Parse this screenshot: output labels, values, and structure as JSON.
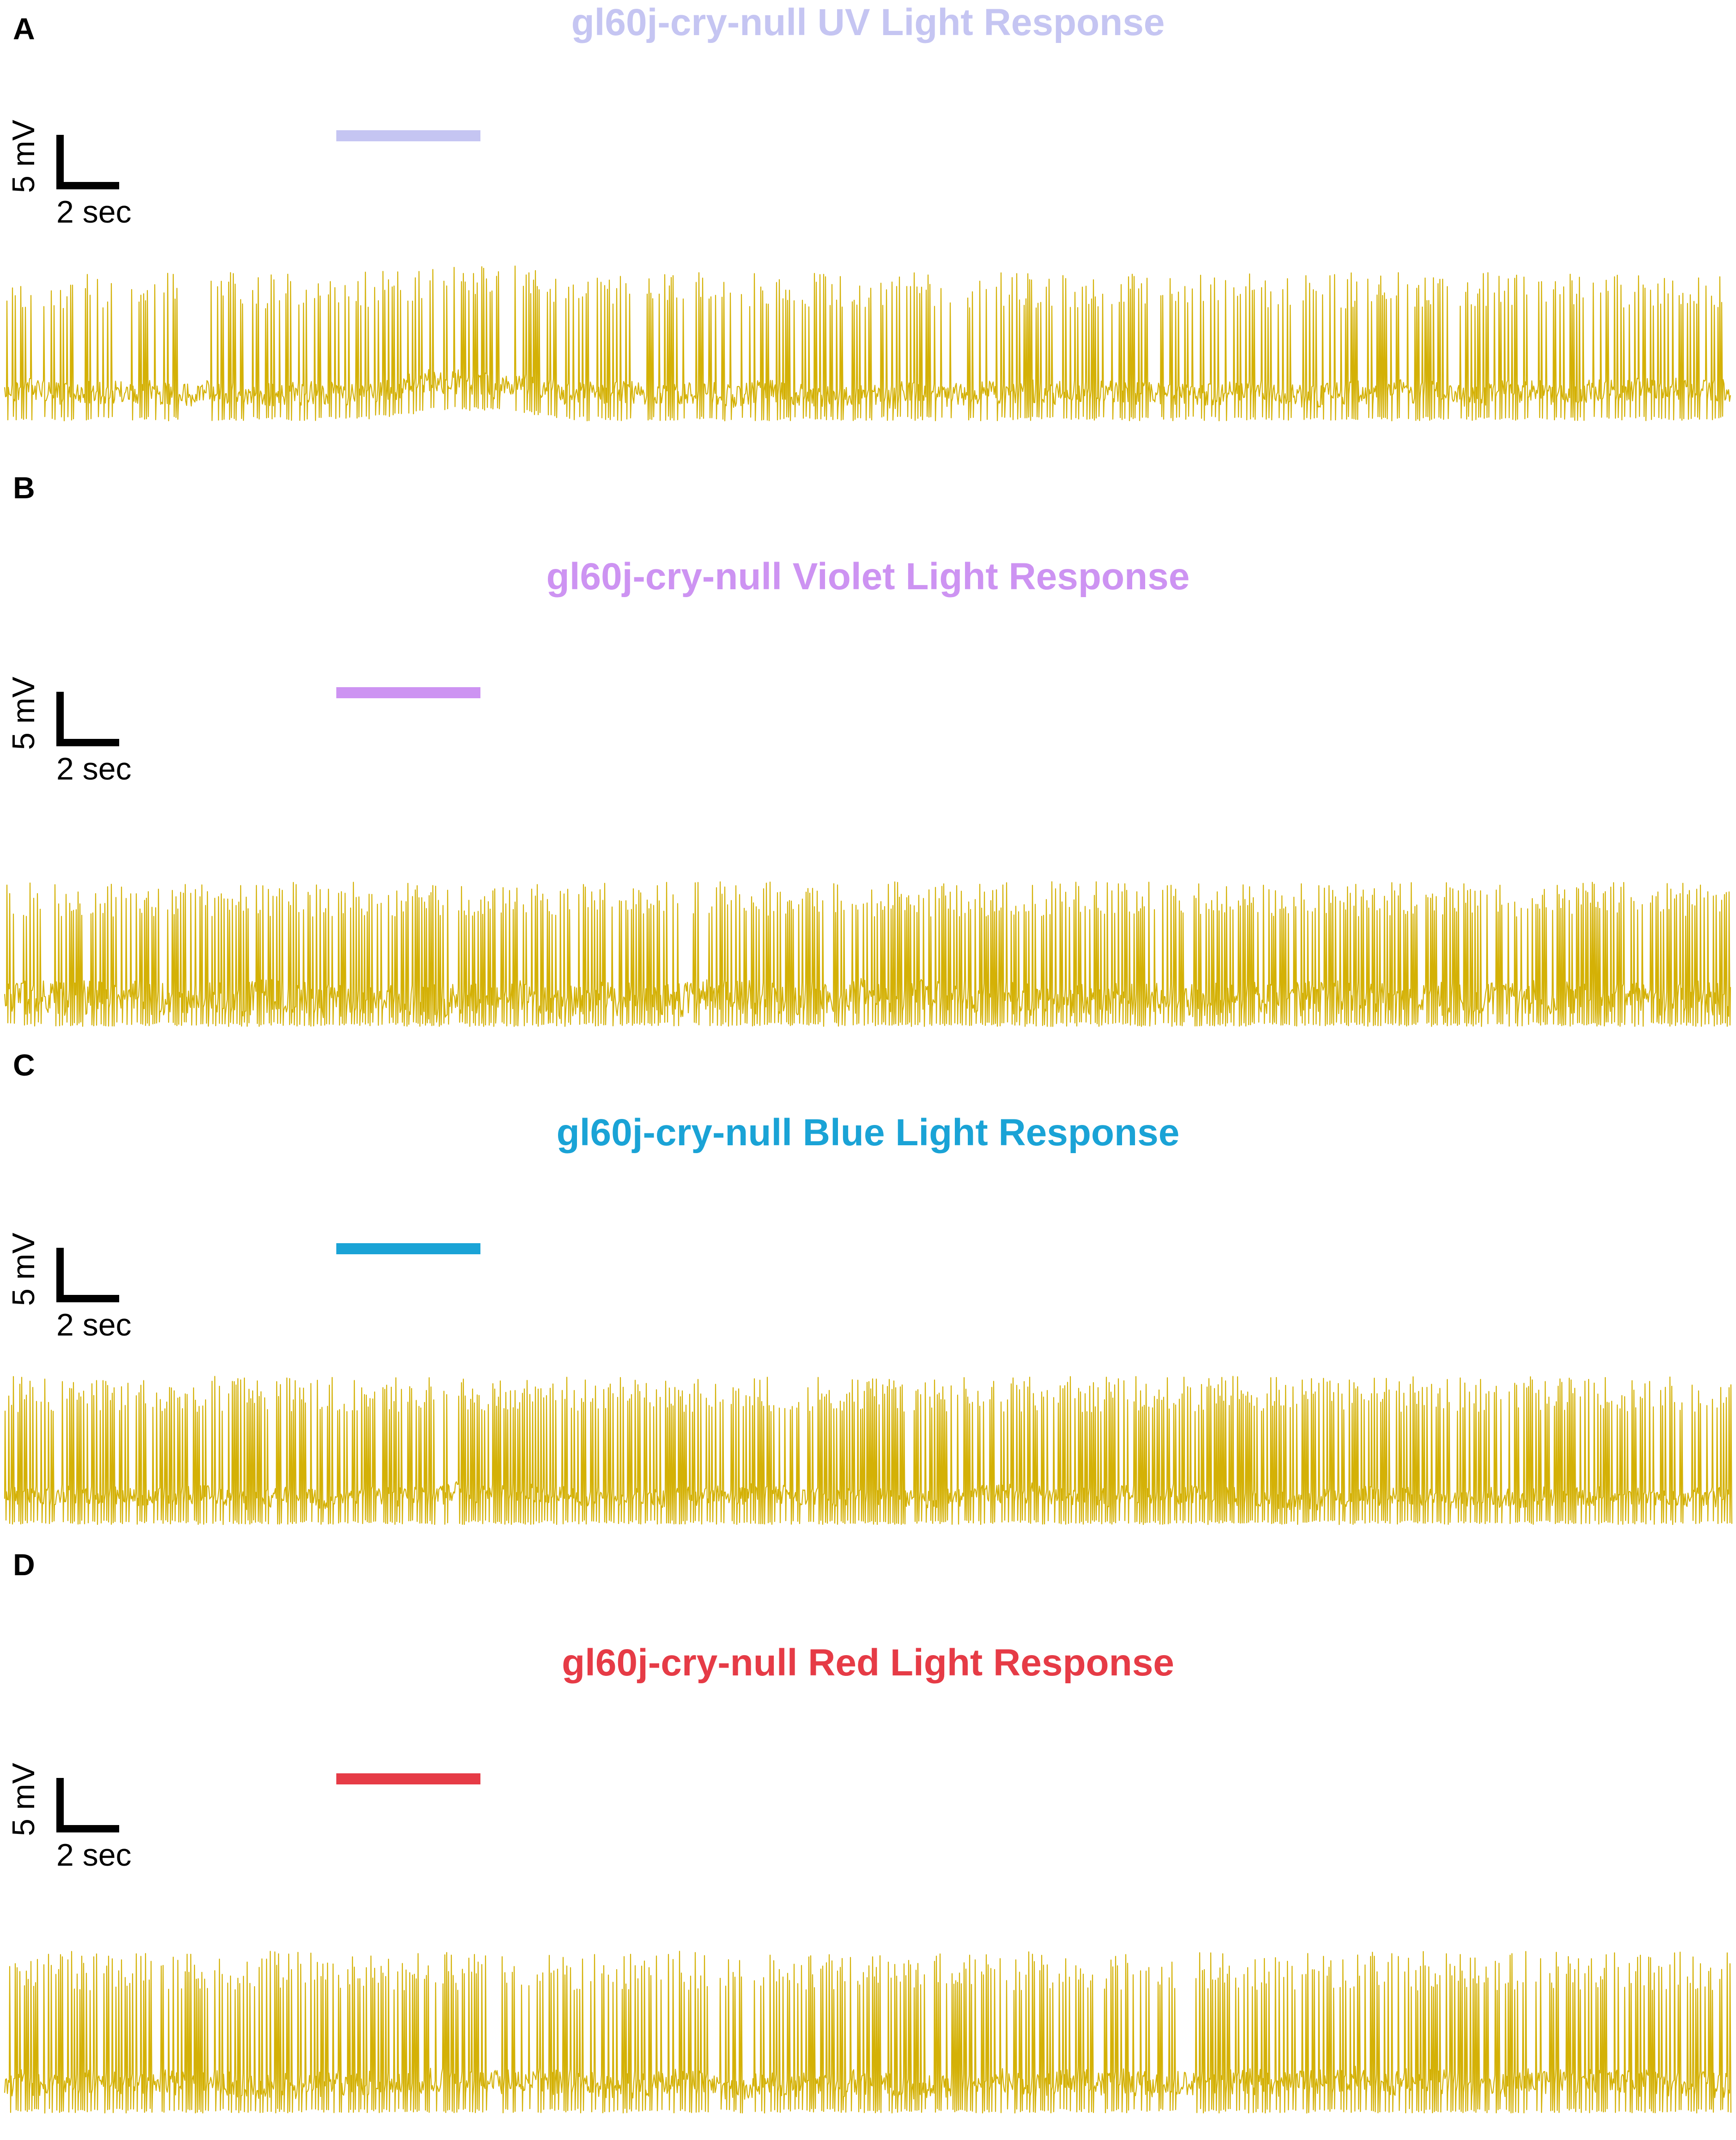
{
  "colors": {
    "trace": "#d4b106",
    "uv": "#c5c5f2",
    "violet": "#cd93f2",
    "blue": "#1aa3d6",
    "red": "#e63b46"
  },
  "chart_data": [
    {
      "type": "line",
      "panel": "A",
      "title": "gl60j-cry-null UV Light Response",
      "title_color": "#c5c5f2",
      "stimulus_color": "#c5c5f2",
      "scale_bar": {
        "voltage": "5 mV",
        "time": "2 sec"
      },
      "trace": {
        "spike_rate": 0.55,
        "noise": 0.12,
        "depolarization_after_stimulus": true,
        "seed": 11
      }
    },
    {
      "type": "line",
      "panel": "B",
      "title": "gl60j-cry-null Violet Light Response",
      "title_color": "#cd93f2",
      "stimulus_color": "#cd93f2",
      "scale_bar": {
        "voltage": "5 mV",
        "time": "2 sec"
      },
      "trace": {
        "spike_rate": 0.8,
        "noise": 0.18,
        "depolarization_after_stimulus": false,
        "seed": 23
      }
    },
    {
      "type": "line",
      "panel": "C",
      "title": "gl60j-cry-null Blue Light Response",
      "title_color": "#1aa3d6",
      "stimulus_color": "#1aa3d6",
      "scale_bar": {
        "voltage": "5 mV",
        "time": "2 sec"
      },
      "trace": {
        "spike_rate": 0.85,
        "noise": 0.1,
        "depolarization_after_stimulus": false,
        "seed": 37
      }
    },
    {
      "type": "line",
      "panel": "D",
      "title": "gl60j-cry-null Red Light Response",
      "title_color": "#e63b46",
      "stimulus_color": "#e63b46",
      "scale_bar": {
        "voltage": "5 mV",
        "time": "2 sec"
      },
      "trace": {
        "spike_rate": 0.7,
        "noise": 0.12,
        "depolarization_after_stimulus": false,
        "seed": 51
      }
    }
  ]
}
